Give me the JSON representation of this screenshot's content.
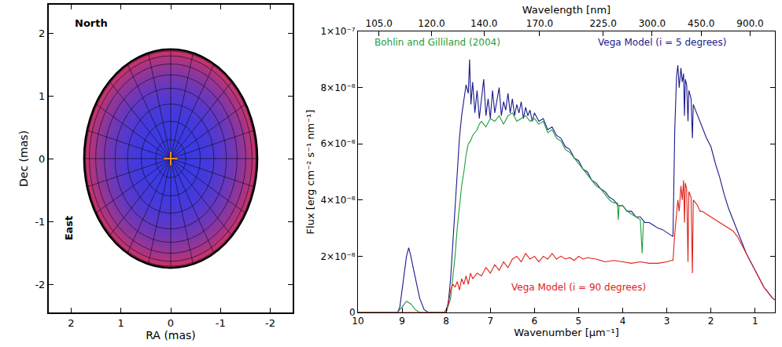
{
  "chart_data": [
    {
      "type": "disk",
      "xlabel": "RA (mas)",
      "ylabel": "Dec (mas)",
      "xlim": [
        2.45,
        -2.45
      ],
      "ylim": [
        -2.45,
        2.45
      ],
      "xticks": [
        2,
        1,
        0,
        -1,
        -2
      ],
      "yticks": [
        -2,
        -1,
        0,
        1,
        2
      ],
      "grid": false,
      "radius": 1.74,
      "colors": [
        "#3a3ae6",
        "#cc3366"
      ],
      "series": [
        {
          "x": [
            0
          ],
          "values": [
            0
          ],
          "color": "#ff8c1a",
          "marker": "cross"
        }
      ],
      "annotations": [
        {
          "text": "North",
          "x": 1.6,
          "y": 2.15
        }
      ],
      "vertical_annotations": [
        {
          "text": "East",
          "x": 2.05,
          "y": -1.1
        }
      ]
    },
    {
      "type": "line",
      "xlabel": "Wavenumber [µm⁻¹]",
      "x2label": "Wavelength [nm]",
      "ylabel": "Flux [erg cm⁻² s⁻¹ nm⁻¹]",
      "xlim": [
        10,
        0.55
      ],
      "ylim": [
        0,
        1e-07
      ],
      "xticks": [
        10,
        9,
        8,
        7,
        6,
        5,
        4,
        3,
        2,
        1
      ],
      "x2ticks": [
        {
          "value": 9.5238,
          "label": "105.0"
        },
        {
          "value": 8.3333,
          "label": "120.0"
        },
        {
          "value": 7.1429,
          "label": "140.0"
        },
        {
          "value": 5.8824,
          "label": "170.0"
        },
        {
          "value": 4.4444,
          "label": "225.0"
        },
        {
          "value": 3.3333,
          "label": "300.0"
        },
        {
          "value": 2.2222,
          "label": "450.0"
        },
        {
          "value": 1.1111,
          "label": "900.0"
        }
      ],
      "yticks": [
        0,
        {
          "value": 2e-08,
          "label": "2×10⁻⁸"
        },
        {
          "value": 4e-08,
          "label": "4×10⁻⁸"
        },
        {
          "value": 6e-08,
          "label": "6×10⁻⁸"
        },
        {
          "value": 8e-08,
          "label": "8×10⁻⁸"
        },
        {
          "value": 1e-07,
          "label": "1×10⁻⁷"
        }
      ],
      "grid": false,
      "series": [
        {
          "color": "#1a1a8c",
          "x": [
            10,
            9.1,
            9.05,
            9.0,
            8.95,
            8.9,
            8.85,
            8.8,
            8.75,
            8.7,
            8.6,
            8.5,
            8.4,
            8.0,
            7.95,
            7.9,
            7.85,
            7.8,
            7.75,
            7.7,
            7.65,
            7.6,
            7.55,
            7.5,
            7.47,
            7.44,
            7.4,
            7.35,
            7.3,
            7.25,
            7.2,
            7.15,
            7.1,
            7.05,
            7.0,
            6.95,
            6.9,
            6.85,
            6.8,
            6.75,
            6.7,
            6.65,
            6.6,
            6.55,
            6.5,
            6.45,
            6.4,
            6.35,
            6.3,
            6.25,
            6.2,
            6.15,
            6.1,
            6.05,
            6.0,
            5.9,
            5.8,
            5.7,
            5.6,
            5.5,
            5.4,
            5.3,
            5.2,
            5.1,
            5.0,
            4.9,
            4.8,
            4.7,
            4.6,
            4.5,
            4.4,
            4.3,
            4.2,
            4.1,
            4.0,
            3.9,
            3.8,
            3.7,
            3.6,
            3.5,
            3.4,
            3.3,
            3.2,
            3.1,
            3.0,
            2.9,
            2.86,
            2.82,
            2.78,
            2.75,
            2.72,
            2.68,
            2.65,
            2.62,
            2.6,
            2.58,
            2.55,
            2.52,
            2.5,
            2.45,
            2.42,
            2.4,
            2.35,
            2.3,
            2.25,
            2.2,
            2.1,
            2.0,
            1.9,
            1.8,
            1.7,
            1.6,
            1.5,
            1.4,
            1.3,
            1.2,
            1.1,
            1.0,
            0.9,
            0.8,
            0.7,
            0.6,
            0.55
          ],
          "values": [
            0,
            0,
            2e-09,
            8e-09,
            1.5e-08,
            2e-08,
            2.3e-08,
            2e-08,
            1.6e-08,
            1.2e-08,
            5e-09,
            1e-09,
            0,
            0,
            4e-09,
            1.2e-08,
            2.4e-08,
            3.6e-08,
            5e-08,
            6.2e-08,
            7e-08,
            7.6e-08,
            8.1e-08,
            7.8e-08,
            9e-08,
            7.4e-08,
            8.2e-08,
            7.1e-08,
            7.9e-08,
            6.9e-08,
            7.7e-08,
            8.3e-08,
            7e-08,
            7.6e-08,
            6.9e-08,
            7.9e-08,
            7.1e-08,
            7.6e-08,
            8e-08,
            7e-08,
            7.5e-08,
            7.2e-08,
            7.8e-08,
            7.1e-08,
            7.6e-08,
            7e-08,
            7.4e-08,
            7.1e-08,
            7.5e-08,
            6.9e-08,
            7.3e-08,
            7e-08,
            7.2e-08,
            6.8e-08,
            7.1e-08,
            6.8e-08,
            6.9e-08,
            6.5e-08,
            6.6e-08,
            6.3e-08,
            6.2e-08,
            5.9e-08,
            5.8e-08,
            5.5e-08,
            5.4e-08,
            5.1e-08,
            5e-08,
            4.7e-08,
            4.6e-08,
            4.4e-08,
            4.3e-08,
            4.1e-08,
            4e-08,
            3.8e-08,
            3.8e-08,
            3.6e-08,
            3.6e-08,
            3.4e-08,
            3.4e-08,
            3.2e-08,
            3.2e-08,
            3.1e-08,
            3e-08,
            2.95e-08,
            2.85e-08,
            2.75e-08,
            2.7e-08,
            6.5e-08,
            8.4e-08,
            8.8e-08,
            8e-08,
            8.7e-08,
            8.2e-08,
            8.5e-08,
            7e-08,
            8.3e-08,
            8.1e-08,
            6.8e-08,
            7.9e-08,
            7.6e-08,
            6.2e-08,
            7.4e-08,
            7.2e-08,
            7e-08,
            6.8e-08,
            6.6e-08,
            6.2e-08,
            5.9e-08,
            5.3e-08,
            4.8e-08,
            4.2e-08,
            3.7e-08,
            3.3e-08,
            2.9e-08,
            2.5e-08,
            2.1e-08,
            1.8e-08,
            1.5e-08,
            1.2e-08,
            9e-09,
            7e-09,
            5e-09,
            4.5e-09
          ]
        },
        {
          "color": "#1f9e3a",
          "x": [
            10,
            9.1,
            9.0,
            8.9,
            8.8,
            8.7,
            8.6,
            8.0,
            7.9,
            7.85,
            7.8,
            7.75,
            7.7,
            7.65,
            7.6,
            7.55,
            7.5,
            7.45,
            7.4,
            7.35,
            7.3,
            7.25,
            7.2,
            7.1,
            7.0,
            6.9,
            6.8,
            6.7,
            6.6,
            6.5,
            6.4,
            6.3,
            6.2,
            6.1,
            6.0,
            5.9,
            5.8,
            5.7,
            5.6,
            5.5,
            5.4,
            5.3,
            5.2,
            5.1,
            5.0,
            4.9,
            4.8,
            4.7,
            4.6,
            4.5,
            4.4,
            4.3,
            4.2,
            4.12,
            4.1,
            4.08,
            4.0,
            3.9,
            3.8,
            3.7,
            3.6,
            3.56,
            3.53,
            3.5
          ],
          "values": [
            0,
            0,
            2e-09,
            4e-09,
            3e-09,
            1e-09,
            0,
            0,
            5e-09,
            1.2e-08,
            2e-08,
            3e-08,
            3.8e-08,
            4.5e-08,
            5e-08,
            5.6e-08,
            6e-08,
            6.1e-08,
            6.3e-08,
            6.4e-08,
            6.5e-08,
            6.7e-08,
            6.8e-08,
            6.6e-08,
            6.9e-08,
            6.8e-08,
            7e-08,
            6.7e-08,
            7e-08,
            7.1e-08,
            6.8e-08,
            6.9e-08,
            7e-08,
            6.8e-08,
            6.9e-08,
            6.7e-08,
            6.8e-08,
            6.4e-08,
            6.5e-08,
            6.2e-08,
            6.1e-08,
            5.8e-08,
            5.7e-08,
            5.5e-08,
            5.3e-08,
            5.1e-08,
            4.9e-08,
            4.7e-08,
            4.5e-08,
            4.4e-08,
            4.2e-08,
            4e-08,
            3.9e-08,
            3.9e-08,
            3.3e-08,
            3.8e-08,
            3.8e-08,
            3.6e-08,
            3.5e-08,
            3.4e-08,
            3.3e-08,
            2.1e-08,
            3.2e-08,
            3.2e-08
          ]
        },
        {
          "color": "#e0201a",
          "x": [
            10,
            8.05,
            8.0,
            7.95,
            7.9,
            7.85,
            7.8,
            7.75,
            7.7,
            7.65,
            7.6,
            7.55,
            7.5,
            7.45,
            7.4,
            7.3,
            7.2,
            7.1,
            7.0,
            6.9,
            6.8,
            6.7,
            6.6,
            6.5,
            6.4,
            6.3,
            6.2,
            6.1,
            6.0,
            5.9,
            5.8,
            5.7,
            5.6,
            5.5,
            5.4,
            5.3,
            5.2,
            5.1,
            5.0,
            4.9,
            4.8,
            4.6,
            4.4,
            4.2,
            4.0,
            3.8,
            3.6,
            3.4,
            3.2,
            3.0,
            2.9,
            2.86,
            2.82,
            2.78,
            2.75,
            2.72,
            2.68,
            2.65,
            2.62,
            2.6,
            2.58,
            2.55,
            2.52,
            2.5,
            2.45,
            2.42,
            2.4,
            2.35,
            2.3,
            2.25,
            2.2,
            2.1,
            2.0,
            1.9,
            1.8,
            1.7,
            1.6,
            1.5,
            1.4,
            1.3,
            1.2,
            1.1,
            1.0,
            0.9,
            0.8,
            0.7,
            0.6,
            0.55
          ],
          "values": [
            0,
            0,
            1e-09,
            3e-09,
            8e-09,
            1e-08,
            9e-09,
            1.1e-08,
            8e-09,
            1.2e-08,
            1e-08,
            1.3e-08,
            1e-08,
            1.4e-08,
            1.2e-08,
            1.4e-08,
            1.3e-08,
            1.6e-08,
            1.4e-08,
            1.7e-08,
            1.5e-08,
            1.8e-08,
            1.6e-08,
            1.9e-08,
            2e-08,
            1.8e-08,
            2.1e-08,
            1.9e-08,
            2e-08,
            1.8e-08,
            2e-08,
            1.9e-08,
            2.1e-08,
            1.9e-08,
            2e-08,
            1.9e-08,
            1.95e-08,
            1.85e-08,
            2e-08,
            1.9e-08,
            1.95e-08,
            1.9e-08,
            1.8e-08,
            1.85e-08,
            1.8e-08,
            1.75e-08,
            1.8e-08,
            1.75e-08,
            1.75e-08,
            1.8e-08,
            1.85e-08,
            1.85e-08,
            2.8e-08,
            3.6e-08,
            4e-08,
            3.6e-08,
            4.5e-08,
            4e-08,
            4.7e-08,
            3.2e-08,
            4.6e-08,
            4.4e-08,
            1.8e-08,
            4.3e-08,
            4.1e-08,
            1.4e-08,
            4e-08,
            3.9e-08,
            3.8e-08,
            3.6e-08,
            3.6e-08,
            3.5e-08,
            3.4e-08,
            3.3e-08,
            3.2e-08,
            3.1e-08,
            3e-08,
            2.9e-08,
            2.7e-08,
            2.4e-08,
            2.1e-08,
            1.8e-08,
            1.5e-08,
            1.2e-08,
            9e-09,
            7e-09,
            5e-09,
            4.5e-09
          ]
        }
      ],
      "annotations": [
        {
          "text": "Bohlin and Gilliland (2004)",
          "x": 8.2,
          "y": 9.6e-08,
          "color": "#1f9e3a"
        },
        {
          "text": "Vega Model (i = 5 degrees)",
          "x": 3.1,
          "y": 9.6e-08,
          "color": "#1a1a8c"
        },
        {
          "text": "Vega Model (i = 90 degrees)",
          "x": 5.0,
          "y": 9e-09,
          "color": "#e0201a"
        }
      ]
    }
  ]
}
